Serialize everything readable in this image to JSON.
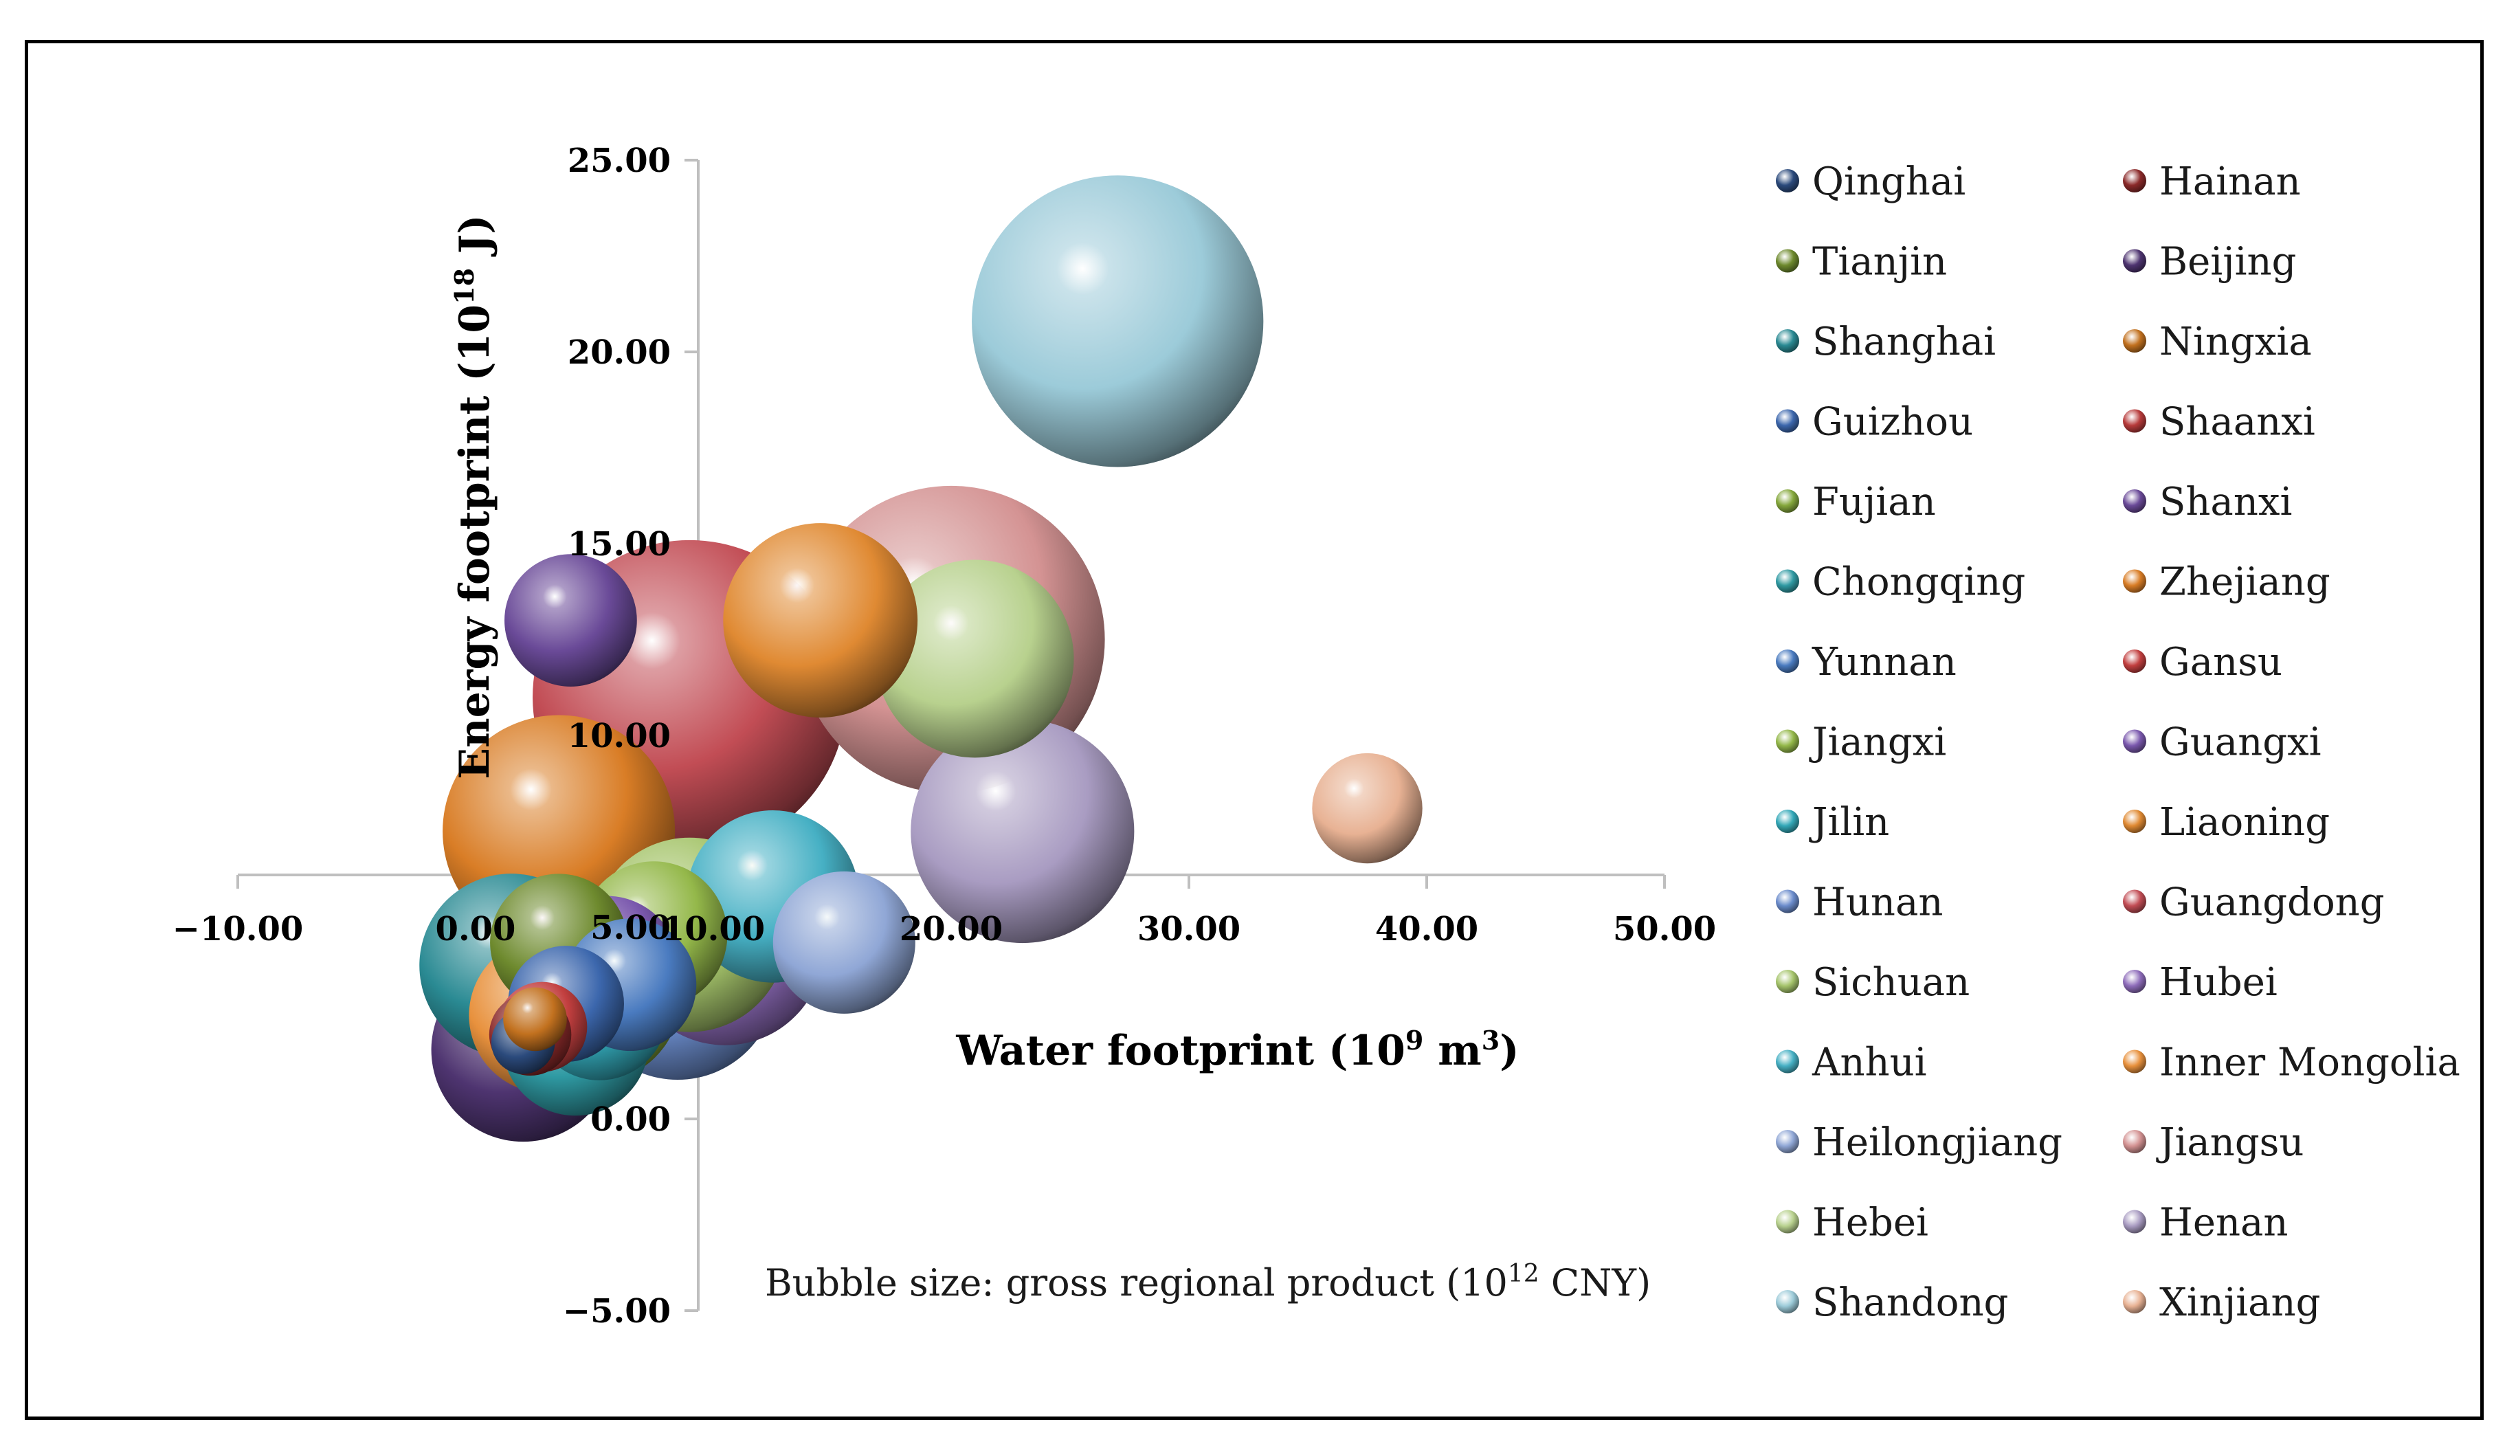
{
  "chart_data": {
    "type": "scatter",
    "subtype": "bubble",
    "xlabel_text": "Water footprint (10",
    "xlabel_sup": "9",
    "xlabel_mid": " m",
    "xlabel_sup2": "3",
    "xlabel_end": ")",
    "ylabel_text": "Energy footprint (10",
    "ylabel_sup": "18",
    "ylabel_end": " J)",
    "note_text": "Bubble size: gross regional product (10",
    "note_sup": "12",
    "note_end": " CNY)",
    "xlim": [
      -10,
      50
    ],
    "ylim": [
      -5,
      25
    ],
    "x_ticks": [
      "-10.00",
      "0.00",
      "10.00",
      "20.00",
      "30.00",
      "40.00",
      "50.00"
    ],
    "x_tick_values": [
      -10,
      0,
      10,
      20,
      30,
      40,
      50
    ],
    "y_ticks": [
      "25.00",
      "20.00",
      "15.00",
      "10.00",
      "5.00",
      "0.00",
      "-5.00"
    ],
    "y_tick_values": [
      25,
      20,
      15,
      10,
      5,
      0,
      -5
    ],
    "legend_position": "right",
    "series": [
      {
        "name": "Qinghai",
        "x": 2.0,
        "y": 2.0,
        "gdp": 0.3,
        "color": "#2b4a7c"
      },
      {
        "name": "Hainan",
        "x": 2.3,
        "y": 2.2,
        "gdp": 0.5,
        "color": "#8b2a2a"
      },
      {
        "name": "Tianjin",
        "x": 3.5,
        "y": 4.6,
        "gdp": 1.4,
        "color": "#6e8a2e"
      },
      {
        "name": "Beijing",
        "x": 2.0,
        "y": 1.8,
        "gdp": 2.5,
        "color": "#4e3470"
      },
      {
        "name": "Shanghai",
        "x": 1.5,
        "y": 4.0,
        "gdp": 2.5,
        "color": "#2a8a93"
      },
      {
        "name": "Ningxia",
        "x": 2.5,
        "y": 2.6,
        "gdp": 0.3,
        "color": "#c2711f"
      },
      {
        "name": "Guizhou",
        "x": 3.8,
        "y": 3.0,
        "gdp": 1.0,
        "color": "#3c67ad"
      },
      {
        "name": "Shaanxi",
        "x": 4.3,
        "y": 3.8,
        "gdp": 1.8,
        "color": "#b73a3a"
      },
      {
        "name": "Fujian",
        "x": 5.0,
        "y": 3.2,
        "gdp": 2.2,
        "color": "#85a83c"
      },
      {
        "name": "Shanxi",
        "x": 4.0,
        "y": 13.0,
        "gdp": 1.3,
        "color": "#6a4a98"
      },
      {
        "name": "Chongqing",
        "x": 4.2,
        "y": 2.0,
        "gdp": 1.6,
        "color": "#2f9aa3"
      },
      {
        "name": "Zhejiang",
        "x": 3.5,
        "y": 7.5,
        "gdp": 4.0,
        "color": "#d97d26"
      },
      {
        "name": "Yunnan",
        "x": 6.5,
        "y": 3.5,
        "gdp": 1.3,
        "color": "#4a7bc0"
      },
      {
        "name": "Gansu",
        "x": 2.8,
        "y": 2.4,
        "gdp": 0.6,
        "color": "#c23f3f"
      },
      {
        "name": "Jiangxi",
        "x": 7.5,
        "y": 4.8,
        "gdp": 1.6,
        "color": "#94b84a"
      },
      {
        "name": "Guangxi",
        "x": 5.5,
        "y": 3.9,
        "gdp": 1.6,
        "color": "#7a58ad"
      },
      {
        "name": "Jilin",
        "x": 5.2,
        "y": 2.8,
        "gdp": 1.4,
        "color": "#33a8b8"
      },
      {
        "name": "Liaoning",
        "x": 14.5,
        "y": 13.0,
        "gdp": 2.8,
        "color": "#e08a33"
      },
      {
        "name": "Hunan",
        "x": 8.5,
        "y": 3.6,
        "gdp": 2.9,
        "color": "#6b8ccc"
      },
      {
        "name": "Guangdong",
        "x": 9.0,
        "y": 11.0,
        "gdp": 7.3,
        "color": "#c24d55"
      },
      {
        "name": "Sichuan",
        "x": 9.0,
        "y": 4.8,
        "gdp": 2.8,
        "color": "#a5c46b"
      },
      {
        "name": "Hubei",
        "x": 10.5,
        "y": 4.5,
        "gdp": 2.9,
        "color": "#8e6cba"
      },
      {
        "name": "Anhui",
        "x": 12.5,
        "y": 5.8,
        "gdp": 2.2,
        "color": "#46b0c4"
      },
      {
        "name": "Inner Mongolia",
        "x": 3.0,
        "y": 2.7,
        "gdp": 1.8,
        "color": "#e8913d"
      },
      {
        "name": "Heilongjiang",
        "x": 15.5,
        "y": 4.6,
        "gdp": 1.5,
        "color": "#90a7d6"
      },
      {
        "name": "Jiangsu",
        "x": 20.0,
        "y": 12.5,
        "gdp": 7.0,
        "color": "#d49393"
      },
      {
        "name": "Hebei",
        "x": 21.0,
        "y": 12.0,
        "gdp": 2.9,
        "color": "#b8d18e"
      },
      {
        "name": "Henan",
        "x": 23.0,
        "y": 7.5,
        "gdp": 3.7,
        "color": "#a99cc2"
      },
      {
        "name": "Shandong",
        "x": 27.0,
        "y": 20.8,
        "gdp": 6.3,
        "color": "#9ccbd9"
      },
      {
        "name": "Xinjiang",
        "x": 37.5,
        "y": 8.1,
        "gdp": 0.9,
        "color": "#e8b294"
      }
    ]
  }
}
